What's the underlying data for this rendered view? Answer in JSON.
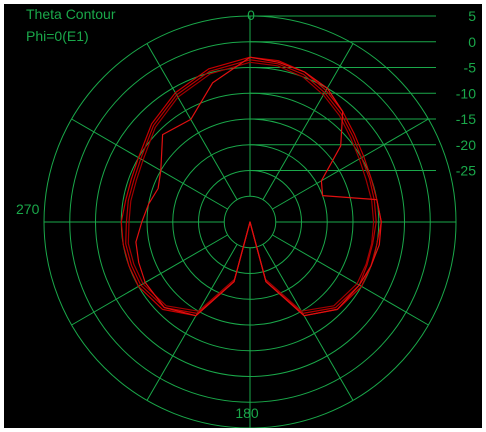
{
  "chart_data": {
    "type": "polar",
    "title": "Theta Contour",
    "subtitle": "Phi=0(E1)",
    "angle_labels": {
      "top": "0",
      "left": "270",
      "bottom": "180"
    },
    "radial_ticks": [
      "5",
      "0",
      "-5",
      "-10",
      "-15",
      "-20",
      "-25"
    ],
    "r_range": [
      -35,
      5
    ],
    "r_step": 5,
    "spoke_step_deg": 30,
    "grid_color": "#1aa84a",
    "series": [
      {
        "color": "#c40000",
        "points": [
          [
            0,
            -3
          ],
          [
            10,
            -3.2
          ],
          [
            20,
            -4
          ],
          [
            30,
            -5.5
          ],
          [
            40,
            -7
          ],
          [
            50,
            -8.5
          ],
          [
            60,
            -9.5
          ],
          [
            70,
            -10
          ],
          [
            80,
            -10
          ],
          [
            90,
            -9.5
          ],
          [
            100,
            -10
          ],
          [
            110,
            -10
          ],
          [
            120,
            -10
          ],
          [
            135,
            -11
          ],
          [
            150,
            -14
          ],
          [
            165,
            -23
          ],
          [
            180,
            -35
          ],
          [
            195,
            -23
          ],
          [
            210,
            -14
          ],
          [
            225,
            -11
          ],
          [
            240,
            -10
          ],
          [
            250,
            -10
          ],
          [
            260,
            -10
          ],
          [
            270,
            -10
          ],
          [
            280,
            -10.5
          ],
          [
            290,
            -10.5
          ],
          [
            300,
            -10
          ],
          [
            315,
            -8
          ],
          [
            330,
            -6
          ],
          [
            345,
            -4.2
          ],
          [
            360,
            -3
          ]
        ]
      },
      {
        "color": "#b40000",
        "points": [
          [
            0,
            -3.5
          ],
          [
            10,
            -3.8
          ],
          [
            20,
            -4.5
          ],
          [
            30,
            -6
          ],
          [
            40,
            -7.5
          ],
          [
            50,
            -9
          ],
          [
            60,
            -10
          ],
          [
            70,
            -10.3
          ],
          [
            80,
            -10.5
          ],
          [
            90,
            -10.5
          ],
          [
            100,
            -10.8
          ],
          [
            110,
            -10.8
          ],
          [
            120,
            -10.5
          ],
          [
            135,
            -11.5
          ],
          [
            150,
            -14.5
          ],
          [
            165,
            -23
          ],
          [
            180,
            -35
          ],
          [
            195,
            -23
          ],
          [
            210,
            -14.5
          ],
          [
            225,
            -11.5
          ],
          [
            240,
            -10.5
          ],
          [
            250,
            -10.5
          ],
          [
            260,
            -10.5
          ],
          [
            270,
            -11
          ],
          [
            280,
            -11
          ],
          [
            290,
            -11
          ],
          [
            300,
            -10.5
          ],
          [
            315,
            -8.5
          ],
          [
            330,
            -6.5
          ],
          [
            345,
            -4.7
          ],
          [
            360,
            -3.5
          ]
        ]
      },
      {
        "color": "#a00000",
        "points": [
          [
            0,
            -4
          ],
          [
            10,
            -4.2
          ],
          [
            20,
            -5
          ],
          [
            30,
            -6.5
          ],
          [
            40,
            -8
          ],
          [
            50,
            -9.5
          ],
          [
            60,
            -10.5
          ],
          [
            70,
            -11
          ],
          [
            80,
            -11
          ],
          [
            90,
            -11
          ],
          [
            100,
            -11
          ],
          [
            110,
            -11
          ],
          [
            120,
            -11
          ],
          [
            135,
            -12
          ],
          [
            150,
            -15
          ],
          [
            165,
            -23.5
          ],
          [
            180,
            -35
          ],
          [
            195,
            -23.5
          ],
          [
            210,
            -15
          ],
          [
            225,
            -12
          ],
          [
            240,
            -11
          ],
          [
            250,
            -11
          ],
          [
            260,
            -11
          ],
          [
            270,
            -11.5
          ],
          [
            280,
            -11.5
          ],
          [
            290,
            -11.5
          ],
          [
            300,
            -11
          ],
          [
            315,
            -9
          ],
          [
            330,
            -7
          ],
          [
            345,
            -5.2
          ],
          [
            360,
            -4
          ]
        ]
      },
      {
        "color": "#e01010",
        "points": [
          [
            0,
            -3
          ],
          [
            10,
            -3.5
          ],
          [
            20,
            -4
          ],
          [
            30,
            -5
          ],
          [
            40,
            -7
          ],
          [
            50,
            -12
          ],
          [
            60,
            -19
          ],
          [
            70,
            -20
          ],
          [
            80,
            -10
          ],
          [
            90,
            -9.5
          ],
          [
            100,
            -9.5
          ],
          [
            110,
            -10
          ],
          [
            120,
            -10.5
          ],
          [
            135,
            -11
          ],
          [
            150,
            -14
          ],
          [
            165,
            -23
          ],
          [
            180,
            -35
          ],
          [
            195,
            -23
          ],
          [
            210,
            -14
          ],
          [
            225,
            -11.5
          ],
          [
            240,
            -11.5
          ],
          [
            250,
            -12
          ],
          [
            260,
            -12.5
          ],
          [
            270,
            -14
          ],
          [
            280,
            -15
          ],
          [
            290,
            -16
          ],
          [
            300,
            -15
          ],
          [
            315,
            -11
          ],
          [
            330,
            -12
          ],
          [
            345,
            -7
          ],
          [
            360,
            -3
          ]
        ]
      }
    ]
  }
}
